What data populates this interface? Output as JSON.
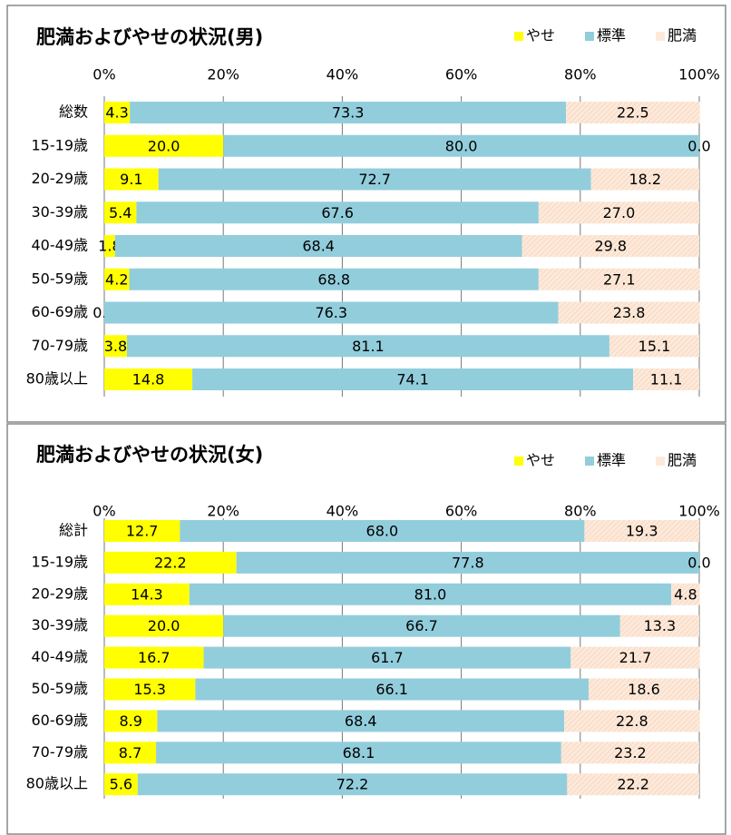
{
  "chart_data": [
    {
      "type": "stacked-bar-horizontal",
      "title": "肥満およびやせの状況(男)",
      "categories": [
        "総数",
        "15-19歳",
        "20-29歳",
        "30-39歳",
        "40-49歳",
        "50-59歳",
        "60-69歳",
        "70-79歳",
        "80歳以上"
      ],
      "series": [
        {
          "name": "やせ",
          "color": "#ffff00",
          "values": [
            4.3,
            20.0,
            9.1,
            5.4,
            1.8,
            4.2,
            0.0,
            3.8,
            14.8
          ],
          "value_labels": [
            "4.3",
            "20.0",
            "9.1",
            "5.4",
            "1.8",
            "4.2",
            "0.0",
            "3.8",
            "14.8"
          ]
        },
        {
          "name": "標準",
          "color": "#92cddc",
          "values": [
            73.3,
            80.0,
            72.7,
            67.6,
            68.4,
            68.8,
            76.3,
            81.1,
            74.1
          ],
          "value_labels": [
            "73.3",
            "80.0",
            "72.7",
            "67.6",
            "68.4",
            "68.8",
            "76.3",
            "81.1",
            "74.1"
          ]
        },
        {
          "name": "肥満",
          "color": "#fde9d9",
          "values": [
            22.5,
            0.0,
            18.2,
            27.0,
            29.8,
            27.1,
            23.8,
            15.1,
            11.1
          ],
          "value_labels": [
            "22.5",
            "0.0",
            "18.2",
            "27.0",
            "29.8",
            "27.1",
            "23.8",
            "15.1",
            "11.1"
          ]
        }
      ],
      "xlim": [
        0,
        100
      ],
      "xticks": [
        {
          "value": 0,
          "label": "0%"
        },
        {
          "value": 20,
          "label": "20%"
        },
        {
          "value": 40,
          "label": "40%"
        },
        {
          "value": 60,
          "label": "60%"
        },
        {
          "value": 80,
          "label": "80%"
        },
        {
          "value": 100,
          "label": "100%"
        }
      ],
      "grid": true,
      "legend": "top-right"
    },
    {
      "type": "stacked-bar-horizontal",
      "title": "肥満およびやせの状況(女)",
      "categories": [
        "総計",
        "15-19歳",
        "20-29歳",
        "30-39歳",
        "40-49歳",
        "50-59歳",
        "60-69歳",
        "70-79歳",
        "80歳以上"
      ],
      "series": [
        {
          "name": "やせ",
          "color": "#ffff00",
          "values": [
            12.7,
            22.2,
            14.3,
            20.0,
            16.7,
            15.3,
            8.9,
            8.7,
            5.6
          ],
          "value_labels": [
            "12.7",
            "22.2",
            "14.3",
            "20.0",
            "16.7",
            "15.3",
            "8.9",
            "8.7",
            "5.6"
          ]
        },
        {
          "name": "標準",
          "color": "#92cddc",
          "values": [
            68.0,
            77.8,
            81.0,
            66.7,
            61.7,
            66.1,
            68.4,
            68.1,
            72.2
          ],
          "value_labels": [
            "68.0",
            "77.8",
            "81.0",
            "66.7",
            "61.7",
            "66.1",
            "68.4",
            "68.1",
            "72.2"
          ]
        },
        {
          "name": "肥満",
          "color": "#fde9d9",
          "values": [
            19.3,
            0.0,
            4.8,
            13.3,
            21.7,
            18.6,
            22.8,
            23.2,
            22.2
          ],
          "value_labels": [
            "19.3",
            "0.0",
            "4.8",
            "13.3",
            "21.7",
            "18.6",
            "22.8",
            "23.2",
            "22.2"
          ]
        }
      ],
      "xlim": [
        0,
        100
      ],
      "xticks": [
        {
          "value": 0,
          "label": "0%"
        },
        {
          "value": 20,
          "label": "20%"
        },
        {
          "value": 40,
          "label": "40%"
        },
        {
          "value": 60,
          "label": "60%"
        },
        {
          "value": 80,
          "label": "80%"
        },
        {
          "value": 100,
          "label": "100%"
        }
      ],
      "grid": true,
      "legend": "top-right"
    }
  ]
}
